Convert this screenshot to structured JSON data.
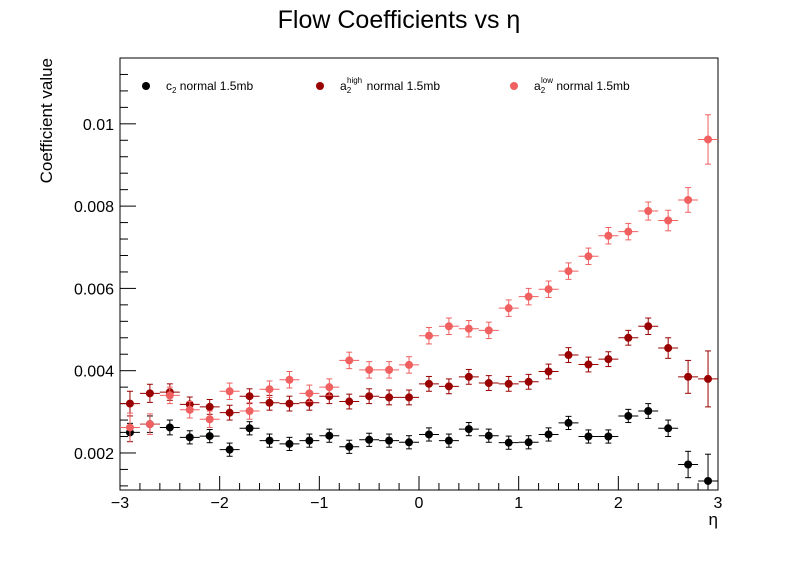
{
  "chart_data": {
    "type": "scatter",
    "title": "Flow Coefficients vs η",
    "xlabel": "η",
    "ylabel": "Coefficient value",
    "xlim": [
      -3,
      3
    ],
    "ylim": [
      0.0011,
      0.0116
    ],
    "x_ticks": [
      -3,
      -2,
      -1,
      0,
      1,
      2,
      3
    ],
    "x_tick_labels": [
      "−3",
      "−2",
      "−1",
      "0",
      "1",
      "2",
      "3"
    ],
    "y_ticks": [
      0.002,
      0.004,
      0.006,
      0.008,
      0.01
    ],
    "y_tick_labels": [
      "0.002",
      "0.004",
      "0.006",
      "0.008",
      "0.01"
    ],
    "grid": false,
    "legend_position": "top",
    "x_bin_half_width": 0.1,
    "x": [
      -2.9,
      -2.7,
      -2.5,
      -2.3,
      -2.1,
      -1.9,
      -1.7,
      -1.5,
      -1.3,
      -1.1,
      -0.9,
      -0.7,
      -0.5,
      -0.3,
      -0.1,
      0.1,
      0.3,
      0.5,
      0.7,
      0.9,
      1.1,
      1.3,
      1.5,
      1.7,
      1.9,
      2.1,
      2.3,
      2.5,
      2.7,
      2.9
    ],
    "series": [
      {
        "name_base": "c",
        "name_sub": "2",
        "name_sup": "",
        "name_suffix": " normal 1.5mb",
        "color": "#000000",
        "values": [
          0.0025,
          0.0027,
          0.00262,
          0.00238,
          0.00241,
          0.00208,
          0.0026,
          0.0023,
          0.00222,
          0.0023,
          0.00242,
          0.00215,
          0.00232,
          0.0023,
          0.00226,
          0.00245,
          0.0023,
          0.00258,
          0.00242,
          0.00225,
          0.00226,
          0.00245,
          0.00273,
          0.0024,
          0.0024,
          0.0029,
          0.00302,
          0.0026,
          0.00172,
          0.00132
        ],
        "errors": [
          0.00022,
          0.0002,
          0.00018,
          0.00016,
          0.00016,
          0.00016,
          0.00016,
          0.00016,
          0.00016,
          0.00016,
          0.00016,
          0.00016,
          0.00016,
          0.00016,
          0.00016,
          0.00016,
          0.00016,
          0.00016,
          0.00016,
          0.00016,
          0.00016,
          0.00016,
          0.00016,
          0.00016,
          0.00016,
          0.00016,
          0.00018,
          0.0002,
          0.00032,
          0.00065
        ]
      },
      {
        "name_base": "a",
        "name_sub": "2",
        "name_sup": "high",
        "name_suffix": " normal 1.5mb",
        "color": "#990000",
        "values": [
          0.0032,
          0.00345,
          0.00348,
          0.00318,
          0.00312,
          0.00298,
          0.00338,
          0.00322,
          0.0032,
          0.00322,
          0.00338,
          0.00325,
          0.00338,
          0.00335,
          0.00335,
          0.00368,
          0.00362,
          0.00385,
          0.0037,
          0.00368,
          0.00373,
          0.00398,
          0.00438,
          0.00415,
          0.00428,
          0.0048,
          0.00508,
          0.00455,
          0.00385,
          0.0038
        ],
        "errors": [
          0.0003,
          0.00022,
          0.0002,
          0.00018,
          0.00018,
          0.00018,
          0.00018,
          0.00018,
          0.00018,
          0.00018,
          0.00018,
          0.00018,
          0.00018,
          0.00018,
          0.00018,
          0.00018,
          0.00018,
          0.00018,
          0.00018,
          0.00018,
          0.00018,
          0.00018,
          0.00018,
          0.00018,
          0.00018,
          0.00018,
          0.0002,
          0.00025,
          0.0004,
          0.00068
        ]
      },
      {
        "name_base": "a",
        "name_sub": "2",
        "name_sup": "low",
        "name_suffix": " normal 1.5mb",
        "color": "#f06060",
        "values": [
          0.00262,
          0.0027,
          0.0034,
          0.00305,
          0.00282,
          0.0035,
          0.00302,
          0.00355,
          0.00378,
          0.00345,
          0.0036,
          0.00425,
          0.00402,
          0.00402,
          0.00414,
          0.00485,
          0.00508,
          0.00502,
          0.00498,
          0.00552,
          0.0058,
          0.00598,
          0.00642,
          0.00678,
          0.00728,
          0.00738,
          0.00788,
          0.00765,
          0.00815,
          0.00962
        ],
        "errors": [
          0.00035,
          0.00025,
          0.0002,
          0.0002,
          0.0002,
          0.0002,
          0.0002,
          0.0002,
          0.0002,
          0.0002,
          0.0002,
          0.0002,
          0.0002,
          0.0002,
          0.0002,
          0.0002,
          0.0002,
          0.0002,
          0.0002,
          0.0002,
          0.0002,
          0.0002,
          0.0002,
          0.0002,
          0.0002,
          0.0002,
          0.00022,
          0.00025,
          0.0003,
          0.0006
        ]
      }
    ]
  }
}
